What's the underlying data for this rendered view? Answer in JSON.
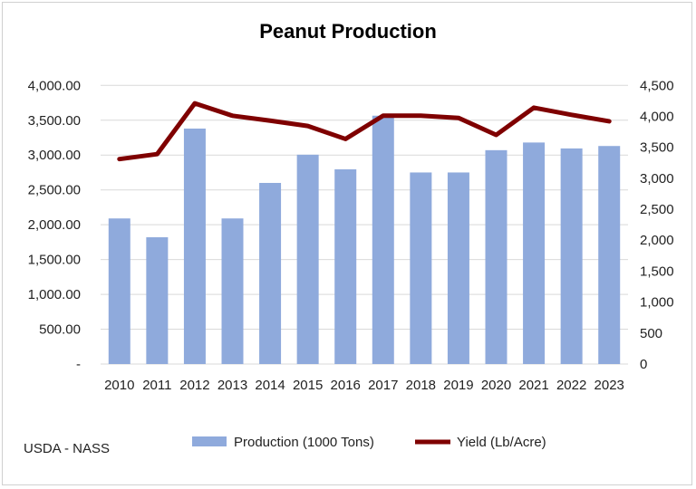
{
  "chart_data": {
    "type": "bar+line",
    "title": "Peanut Production",
    "source_note": "USDA - NASS",
    "categories": [
      "2010",
      "2011",
      "2012",
      "2013",
      "2014",
      "2015",
      "2016",
      "2017",
      "2018",
      "2019",
      "2020",
      "2021",
      "2022",
      "2023"
    ],
    "series": [
      {
        "name": "Production (1000 Tons)",
        "type": "bar",
        "axis": "left",
        "color": "#8faadc",
        "values": [
          2090,
          1820,
          3380,
          2090,
          2600,
          3005,
          2795,
          3565,
          2750,
          2750,
          3070,
          3180,
          3095,
          3130
        ]
      },
      {
        "name": "Yield (Lb/Acre)",
        "type": "line",
        "axis": "right",
        "color": "#7f0000",
        "values": [
          3310,
          3390,
          4210,
          4010,
          3930,
          3845,
          3635,
          4010,
          4010,
          3975,
          3700,
          4140,
          4025,
          3920
        ]
      }
    ],
    "left_axis": {
      "ylim": [
        0,
        4000
      ],
      "ticks": [
        "-",
        "500.00",
        "1,000.00",
        "1,500.00",
        "2,000.00",
        "2,500.00",
        "3,000.00",
        "3,500.00",
        "4,000.00"
      ]
    },
    "right_axis": {
      "ylim": [
        0,
        4500
      ],
      "ticks": [
        "0",
        "500",
        "1,000",
        "1,500",
        "2,000",
        "2,500",
        "3,000",
        "3,500",
        "4,000",
        "4,500"
      ]
    },
    "grid": true,
    "legend": "bottom"
  }
}
